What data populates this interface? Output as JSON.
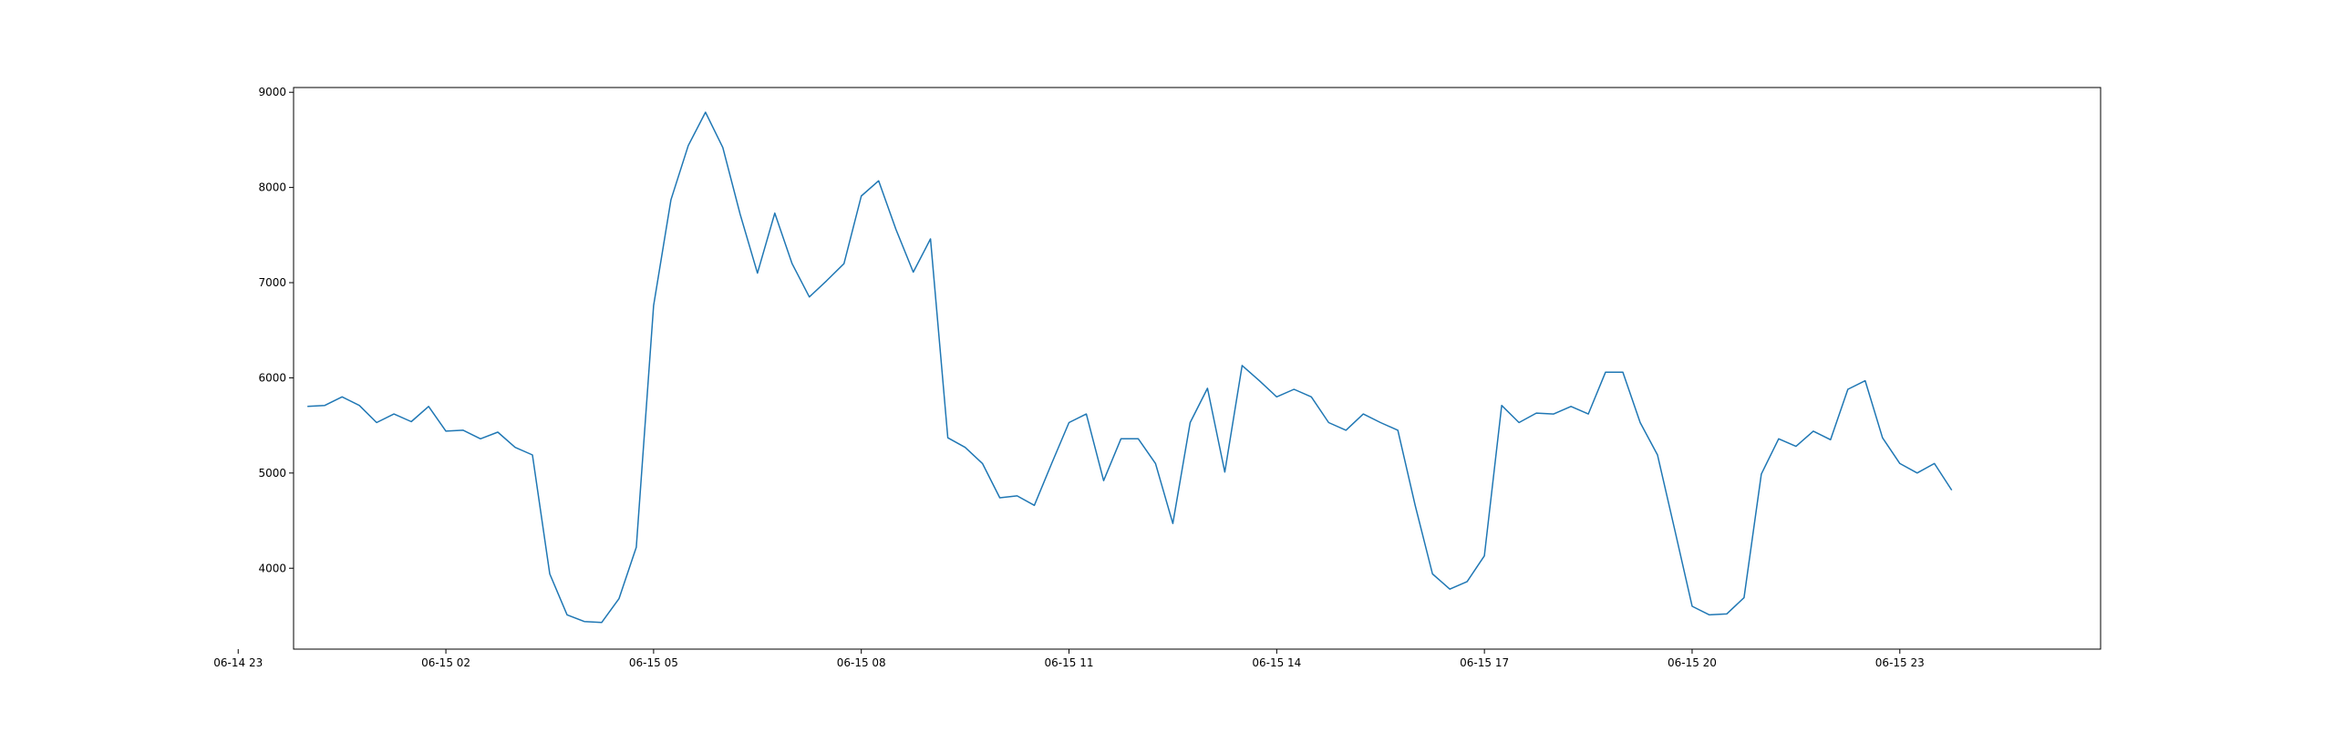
{
  "chart_data": {
    "type": "line",
    "title": "",
    "xlabel": "",
    "ylabel": "",
    "x_tick_labels": [
      "06-14 23",
      "06-15 02",
      "06-15 05",
      "06-15 08",
      "06-15 11",
      "06-15 14",
      "06-15 17",
      "06-15 20",
      "06-15 23"
    ],
    "y_ticks": [
      4000,
      5000,
      6000,
      7000,
      8000,
      9000
    ],
    "xlim_hours": [
      -0.2,
      25.9
    ],
    "ylim": [
      3150,
      9050
    ],
    "grid": false,
    "legend": "none",
    "line_color": "#1f77b4",
    "series": [
      {
        "interval_minutes": 15,
        "x_start": "06-15 00:00",
        "values": [
          5700,
          5710,
          5800,
          5710,
          5530,
          5620,
          5540,
          5700,
          5440,
          5450,
          5360,
          5430,
          5270,
          5190,
          3940,
          3510,
          3440,
          3430,
          3680,
          4220,
          6760,
          7870,
          8440,
          8790,
          8420,
          7720,
          7100,
          7730,
          7200,
          6850,
          7020,
          7200,
          7910,
          8070,
          7560,
          7110,
          7460,
          5370,
          5270,
          5100,
          4740,
          4760,
          4660,
          5100,
          5530,
          5620,
          4920,
          5360,
          5360,
          5100,
          4470,
          5530,
          5890,
          5010,
          6130,
          5970,
          5800,
          5880,
          5800,
          5530,
          5450,
          5620,
          5530,
          5450,
          4660,
          3940,
          3780,
          3860,
          4130,
          5710,
          5530,
          5630,
          5620,
          5700,
          5620,
          6060,
          6060,
          5530,
          5190,
          4400,
          3600,
          3510,
          3520,
          3690,
          4990,
          5360,
          5280,
          5440,
          5350,
          5880,
          5970,
          5370,
          5100,
          5000,
          5100,
          4820
        ]
      }
    ]
  }
}
